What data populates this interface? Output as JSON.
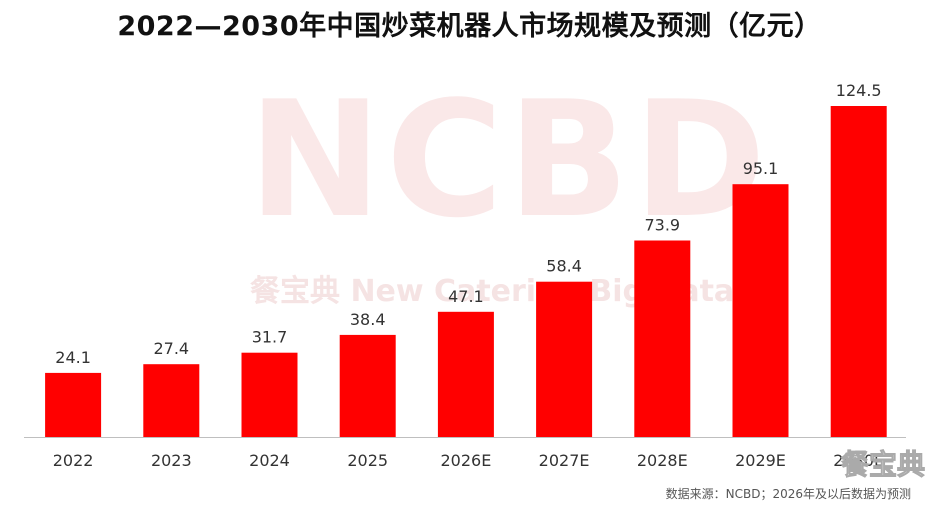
{
  "title": "2022—2030年中国炒菜机器人市场规模及预测（亿元）",
  "watermark": {
    "logo": "NCBD",
    "subtitle": "餐宝典  New Catering Big Data",
    "corner": "餐宝典"
  },
  "source": "数据来源：NCBD；2026年及以后数据为预测",
  "colors": {
    "bar": "#ff0000",
    "axis": "#bfbfbf",
    "label": "#333333"
  },
  "chart_data": {
    "type": "bar",
    "title": "2022—2030年中国炒菜机器人市场规模及预测（亿元）",
    "categories": [
      "2022",
      "2023",
      "2024",
      "2025",
      "2026E",
      "2027E",
      "2028E",
      "2029E",
      "2030E"
    ],
    "values": [
      24.1,
      27.4,
      31.7,
      38.4,
      47.1,
      58.4,
      73.9,
      95.1,
      124.5
    ],
    "xlabel": "",
    "ylabel": "",
    "ylim": [
      0,
      135
    ],
    "grid": false,
    "data_labels": true
  }
}
